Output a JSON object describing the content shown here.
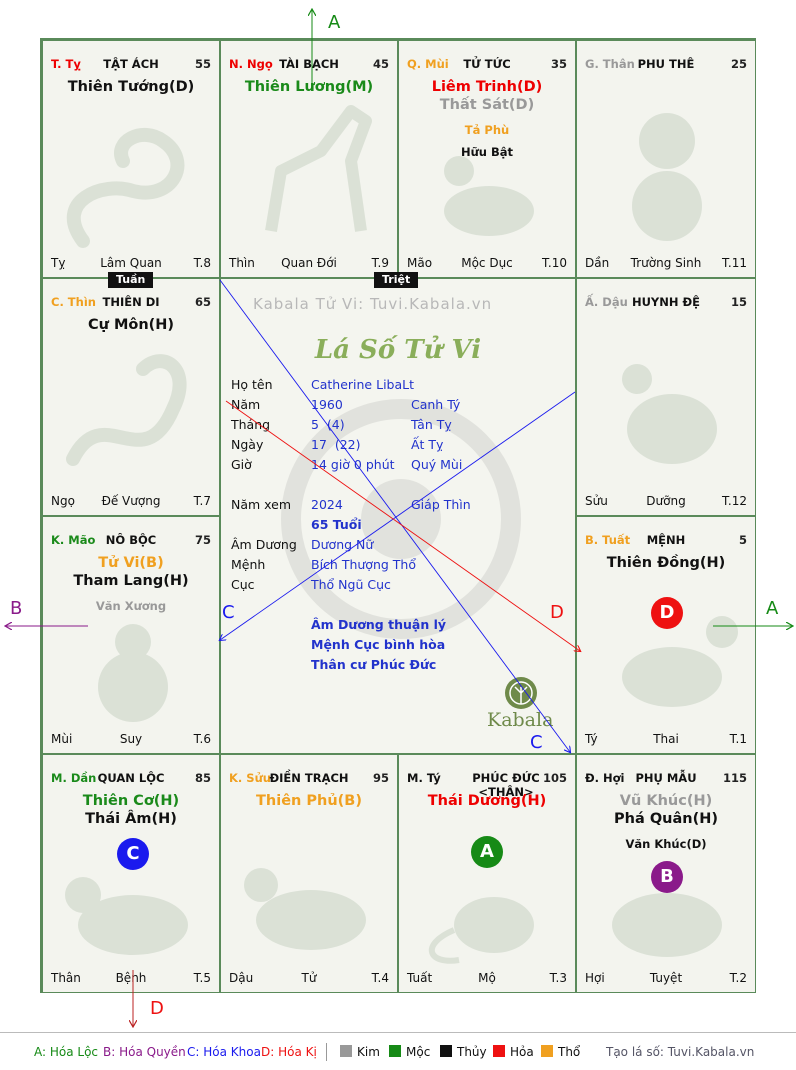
{
  "watermark": "Kabala Tử Vi: Tuvi.Kabala.vn",
  "chart_title": "Lá Số Tử Vi",
  "logo_text": "Kabala",
  "palaces": {
    "ty": {
      "can": "T. Tỵ",
      "name": "TẬT ÁCH",
      "num": "55",
      "stars": [
        "Thiên Tướng(D)"
      ],
      "branch": "Tỵ",
      "stage": "Lâm Quan",
      "tcode": "T.8"
    },
    "ngo": {
      "can": "N. Ngọ",
      "name": "TÀI BẠCH",
      "num": "45",
      "stars": [
        "Thiên Lương(M)"
      ],
      "branch": "Thìn",
      "stage": "Quan Đới",
      "tcode": "T.9"
    },
    "mui": {
      "can": "Q. Mùi",
      "name": "TỬ TỨC",
      "num": "35",
      "stars": [
        "Liêm Trinh(D)",
        "Thất Sát(D)"
      ],
      "minor": [
        "Tả Phù",
        "Hữu Bật"
      ],
      "branch": "Mão",
      "stage": "Mộc Dục",
      "tcode": "T.10"
    },
    "than": {
      "can": "G. Thân",
      "name": "PHU THÊ",
      "num": "25",
      "stars": [],
      "branch": "Dần",
      "stage": "Trường Sinh",
      "tcode": "T.11"
    },
    "thin": {
      "can": "C. Thìn",
      "name": "THIÊN DI",
      "num": "65",
      "stars": [
        "Cự Môn(H)"
      ],
      "branch": "Ngọ",
      "stage": "Đế Vượng",
      "tcode": "T.7"
    },
    "dau": {
      "can": "Ấ. Dậu",
      "name": "HUYNH ĐỆ",
      "num": "15",
      "stars": [],
      "branch": "Sửu",
      "stage": "Dưỡng",
      "tcode": "T.12"
    },
    "mao": {
      "can": "K. Mão",
      "name": "NÔ BỘC",
      "num": "75",
      "stars": [
        "Tử Vi(B)",
        "Tham Lang(H)"
      ],
      "minor": [
        "Văn Xương"
      ],
      "branch": "Mùi",
      "stage": "Suy",
      "tcode": "T.6"
    },
    "tuat": {
      "can": "B. Tuất",
      "name": "MỆNH",
      "num": "5",
      "stars": [
        "Thiên Đồng(H)"
      ],
      "branch": "Tý",
      "stage": "Thai",
      "tcode": "T.1"
    },
    "dan": {
      "can": "M. Dần",
      "name": "QUAN LỘC",
      "num": "85",
      "stars": [
        "Thiên Cơ(H)",
        "Thái Âm(H)"
      ],
      "branch": "Thân",
      "stage": "Bệnh",
      "tcode": "T.5"
    },
    "suu": {
      "can": "K. Sửu",
      "name": "ĐIỀN TRẠCH",
      "num": "95",
      "stars": [
        "Thiên Phủ(B)"
      ],
      "branch": "Dậu",
      "stage": "Tử",
      "tcode": "T.4"
    },
    "tyy": {
      "can": "M. Tý",
      "name": "PHÚC ĐỨC <THÂN>",
      "num": "105",
      "stars": [
        "Thái Dương(H)"
      ],
      "branch": "Tuất",
      "stage": "Mộ",
      "tcode": "T.3"
    },
    "hoi": {
      "can": "Đ. Hợi",
      "name": "PHỤ MẪU",
      "num": "115",
      "stars": [
        "Vũ Khúc(H)",
        "Phá Quân(H)"
      ],
      "minor": [
        "Văn Khúc(D)"
      ],
      "branch": "Hợi",
      "stage": "Tuyệt",
      "tcode": "T.2"
    }
  },
  "tags": {
    "tuan": "Tuần",
    "triet": "Triệt"
  },
  "info": {
    "labels": [
      "Họ tên",
      "Năm",
      "Tháng",
      "Ngày",
      "Giờ",
      "Năm xem",
      "Âm Dương",
      "Mệnh",
      "Cục"
    ],
    "name": "Catherine LibaLt",
    "year": "1960",
    "year_cc": "Canh Tý",
    "month": "5  (4)",
    "month_cc": "Tân Tỵ",
    "day": "17  (22)",
    "day_cc": "Ất Tỵ",
    "hour": "14 giờ 0 phút",
    "hour_cc": "Quý Mùi",
    "view_year": "2024",
    "view_cc": "Giáp Thìn",
    "age": "65 Tuổi",
    "amduong": "Dương Nữ",
    "menh": "Bích Thượng Thổ",
    "cuc": "Thổ Ngũ Cục",
    "notes": [
      "Âm Dương thuận lý",
      "Mệnh Cục bình hòa",
      "Thân cư Phúc Đức"
    ]
  },
  "badges": {
    "A": "A",
    "B": "B",
    "C": "C",
    "D": "D"
  },
  "colors": {
    "A": "#168a16",
    "B": "#8a1a8a",
    "C": "#1a1aee",
    "D": "#ee1111"
  },
  "legend": {
    "a": "A: Hóa Lộc",
    "b": "B: Hóa Quyền",
    "c": "C: Hóa Khoa",
    "d": "D: Hóa Kị",
    "kim": "Kim",
    "moc": "Mộc",
    "thuy": "Thủy",
    "hoa": "Hỏa",
    "tho": "Thổ",
    "site": "Tạo lá số: Tuvi.Kabala.vn"
  }
}
